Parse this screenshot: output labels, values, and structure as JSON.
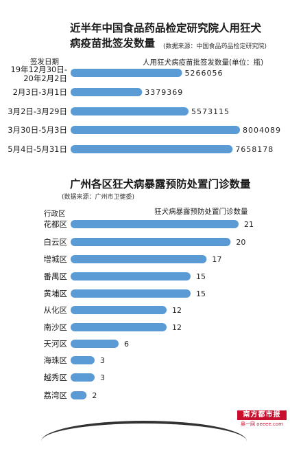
{
  "chart_data": [
    {
      "type": "bar",
      "orientation": "horizontal",
      "title_lines": [
        "近半年中国食品药品检定研究院人用狂犬",
        "病疫苗批签发数量"
      ],
      "source": "(数据来源：中国食品药品检定研究院)",
      "category_header": "签发日期",
      "series_label": "人用狂犬病疫苗批签发数量(单位：瓶)",
      "categories": [
        [
          "19年12月30日-",
          "20年2月2日"
        ],
        [
          "2月3日-3月1日"
        ],
        [
          "3月2日-3月29日"
        ],
        [
          "3月30日-5月3日"
        ],
        [
          "5月4日-5月31日"
        ]
      ],
      "values": [
        5266056,
        3379369,
        5573115,
        8004089,
        7658178
      ],
      "value_labels": [
        "5266056",
        "3379369",
        "5573115",
        "8004089",
        "7658178"
      ],
      "bar_color": "#5b9bd5",
      "xlim": [
        0,
        8004089
      ]
    },
    {
      "type": "bar",
      "orientation": "horizontal",
      "title_lines": [
        "广州各区狂犬病暴露预防处置门诊数量"
      ],
      "source": "(数据来源：广州市卫健委)",
      "category_header": "行政区",
      "series_label": "狂犬病暴露预防处置门诊数量",
      "categories": [
        [
          "花都区"
        ],
        [
          "白云区"
        ],
        [
          "增城区"
        ],
        [
          "番禺区"
        ],
        [
          "黄埔区"
        ],
        [
          "从化区"
        ],
        [
          "南沙区"
        ],
        [
          "天河区"
        ],
        [
          "海珠区"
        ],
        [
          "越秀区"
        ],
        [
          "荔湾区"
        ]
      ],
      "values": [
        21,
        20,
        17,
        15,
        15,
        12,
        12,
        6,
        3,
        3,
        2
      ],
      "value_labels": [
        "21",
        "20",
        "17",
        "15",
        "15",
        "12",
        "12",
        "6",
        "3",
        "3",
        "2"
      ],
      "bar_color": "#5b9bd5",
      "xlim": [
        0,
        21
      ]
    }
  ],
  "brand": {
    "name": "南方都市报",
    "site": "奥一网 oeeee.com",
    "color": "#c8102e"
  }
}
